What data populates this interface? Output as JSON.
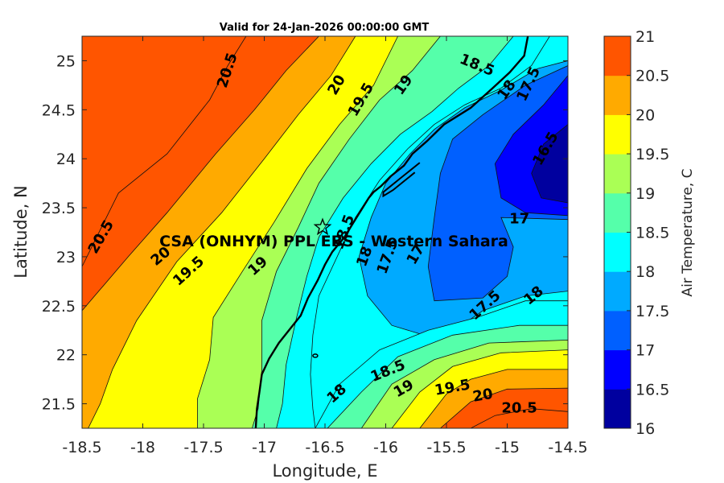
{
  "chart_data": {
    "type": "contour",
    "title": "Valid for 24-Jan-2026 00:00:00 GMT",
    "xlabel": "Longitude, E",
    "ylabel": "Latitude, N",
    "xlim": [
      -18.5,
      -14.5
    ],
    "ylim": [
      21.25,
      25.25
    ],
    "x_ticks": [
      "-18.5",
      "-18",
      "-17.5",
      "-17",
      "-16.5",
      "-16",
      "-15.5",
      "-15",
      "-14.5"
    ],
    "y_ticks": [
      "21.5",
      "22",
      "22.5",
      "23",
      "23.5",
      "24",
      "24.5",
      "25"
    ],
    "colorbar": {
      "label": "Air Temperature, C",
      "ticks": [
        "16",
        "16.5",
        "17",
        "17.5",
        "18",
        "18.5",
        "19",
        "19.5",
        "20",
        "20.5",
        "21"
      ],
      "levels": [
        16,
        16.5,
        17,
        17.5,
        18,
        18.5,
        19,
        19.5,
        20,
        20.5,
        21
      ],
      "colors": [
        "#00009f",
        "#0000ff",
        "#0060ff",
        "#00aaff",
        "#00ffff",
        "#55ffaa",
        "#aaff55",
        "#ffff00",
        "#ffaa00",
        "#ff5500",
        "#ff0000"
      ]
    },
    "contour_labels": [
      {
        "text": "20.5",
        "lon": -17.3,
        "lat": 24.9,
        "rot": -72
      },
      {
        "text": "20",
        "lon": -16.4,
        "lat": 24.75,
        "rot": -60
      },
      {
        "text": "19.5",
        "lon": -16.2,
        "lat": 24.6,
        "rot": -60
      },
      {
        "text": "19",
        "lon": -15.85,
        "lat": 24.75,
        "rot": -55
      },
      {
        "text": "18.5",
        "lon": -15.25,
        "lat": 24.95,
        "rot": 22
      },
      {
        "text": "18",
        "lon": -15.0,
        "lat": 24.7,
        "rot": -55
      },
      {
        "text": "17.5",
        "lon": -14.82,
        "lat": 24.76,
        "rot": -65
      },
      {
        "text": "16.5",
        "lon": -14.68,
        "lat": 24.1,
        "rot": -60
      },
      {
        "text": "17",
        "lon": -14.9,
        "lat": 23.38,
        "rot": 0
      },
      {
        "text": "20.5",
        "lon": -18.34,
        "lat": 23.2,
        "rot": -60
      },
      {
        "text": "20",
        "lon": -17.85,
        "lat": 23.0,
        "rot": -40
      },
      {
        "text": "19.5",
        "lon": -17.62,
        "lat": 22.85,
        "rot": -42
      },
      {
        "text": "19",
        "lon": -17.05,
        "lat": 22.9,
        "rot": -42
      },
      {
        "text": "18.5",
        "lon": -16.34,
        "lat": 23.25,
        "rot": -70
      },
      {
        "text": "18",
        "lon": -16.17,
        "lat": 23.0,
        "rot": -70
      },
      {
        "text": "17.5",
        "lon": -15.98,
        "lat": 23.0,
        "rot": -70
      },
      {
        "text": "17",
        "lon": -15.75,
        "lat": 23.02,
        "rot": -60
      },
      {
        "text": "17.5",
        "lon": -15.18,
        "lat": 22.5,
        "rot": -42
      },
      {
        "text": "18",
        "lon": -14.78,
        "lat": 22.6,
        "rot": -40
      },
      {
        "text": "18",
        "lon": -16.4,
        "lat": 21.6,
        "rot": -42
      },
      {
        "text": "18.5",
        "lon": -15.98,
        "lat": 21.83,
        "rot": -22
      },
      {
        "text": "19",
        "lon": -15.85,
        "lat": 21.65,
        "rot": -30
      },
      {
        "text": "19.5",
        "lon": -15.45,
        "lat": 21.66,
        "rot": -10
      },
      {
        "text": "20",
        "lon": -15.2,
        "lat": 21.58,
        "rot": -10
      },
      {
        "text": "20.5",
        "lon": -14.9,
        "lat": 21.45,
        "rot": 0
      }
    ],
    "site": {
      "name": "CSA (ONHYM) PPL EBS - Western Sahara",
      "lon": -16.52,
      "lat": 23.3
    },
    "coastline": [
      [
        -14.83,
        25.25
      ],
      [
        -14.86,
        25.05
      ],
      [
        -14.98,
        24.88
      ],
      [
        -15.12,
        24.72
      ],
      [
        -15.3,
        24.52
      ],
      [
        -15.52,
        24.35
      ],
      [
        -15.66,
        24.18
      ],
      [
        -15.78,
        24.05
      ],
      [
        -15.85,
        23.93
      ],
      [
        -15.96,
        23.82
      ],
      [
        -16.04,
        23.72
      ],
      [
        -16.1,
        23.66
      ],
      [
        -16.14,
        23.6
      ],
      [
        -16.2,
        23.48
      ],
      [
        -16.27,
        23.34
      ],
      [
        -16.34,
        23.2
      ],
      [
        -16.44,
        23.05
      ],
      [
        -16.5,
        22.92
      ],
      [
        -16.56,
        22.76
      ],
      [
        -16.64,
        22.58
      ],
      [
        -16.7,
        22.4
      ],
      [
        -16.79,
        22.26
      ],
      [
        -16.88,
        22.12
      ],
      [
        -16.96,
        21.96
      ],
      [
        -17.02,
        21.8
      ],
      [
        -17.04,
        21.62
      ],
      [
        -17.06,
        21.45
      ],
      [
        -17.07,
        21.25
      ]
    ],
    "peninsula": [
      [
        -15.72,
        23.96
      ],
      [
        -15.8,
        23.88
      ],
      [
        -15.88,
        23.8
      ],
      [
        -15.96,
        23.72
      ],
      [
        -16.02,
        23.66
      ],
      [
        -16.02,
        23.62
      ],
      [
        -15.94,
        23.68
      ],
      [
        -15.86,
        23.76
      ],
      [
        -15.76,
        23.86
      ]
    ],
    "bands": [
      {
        "level": 20.5,
        "poly": [
          [
            -18.5,
            25.25
          ],
          [
            -17.15,
            25.25
          ],
          [
            -17.3,
            24.95
          ],
          [
            -17.45,
            24.6
          ],
          [
            -17.8,
            24.05
          ],
          [
            -18.2,
            23.65
          ],
          [
            -18.38,
            23.2
          ],
          [
            -18.5,
            22.9
          ]
        ]
      },
      {
        "level": 20.5,
        "poly": [
          [
            -15.3,
            21.25
          ],
          [
            -15.1,
            21.38
          ],
          [
            -14.8,
            21.45
          ],
          [
            -14.5,
            21.42
          ],
          [
            -14.5,
            21.25
          ]
        ]
      },
      {
        "level": 20,
        "poly": [
          [
            -16.55,
            25.25
          ],
          [
            -16.82,
            24.9
          ],
          [
            -17.08,
            24.5
          ],
          [
            -17.4,
            24.05
          ],
          [
            -17.8,
            23.45
          ],
          [
            -18.12,
            23.0
          ],
          [
            -18.5,
            22.45
          ],
          [
            -18.5,
            25.25
          ]
        ]
      },
      {
        "level": 20,
        "poly": [
          [
            -15.55,
            21.25
          ],
          [
            -15.3,
            21.52
          ],
          [
            -15.0,
            21.65
          ],
          [
            -14.5,
            21.66
          ],
          [
            -14.5,
            21.25
          ]
        ]
      },
      {
        "level": 19.5,
        "poly": [
          [
            -16.25,
            25.25
          ],
          [
            -16.45,
            24.85
          ],
          [
            -16.72,
            24.45
          ],
          [
            -17.0,
            24.0
          ],
          [
            -17.35,
            23.45
          ],
          [
            -17.72,
            22.95
          ],
          [
            -18.05,
            22.35
          ],
          [
            -18.25,
            21.85
          ],
          [
            -18.35,
            21.5
          ],
          [
            -18.45,
            21.25
          ],
          [
            -18.5,
            21.25
          ],
          [
            -18.5,
            25.25
          ]
        ]
      },
      {
        "level": 19.5,
        "poly": [
          [
            -15.72,
            21.25
          ],
          [
            -15.5,
            21.6
          ],
          [
            -15.3,
            21.75
          ],
          [
            -15.0,
            21.85
          ],
          [
            -14.5,
            21.85
          ],
          [
            -14.5,
            21.25
          ]
        ]
      },
      {
        "level": 19,
        "poly": [
          [
            -15.9,
            25.25
          ],
          [
            -16.1,
            24.75
          ],
          [
            -16.38,
            24.35
          ],
          [
            -16.65,
            23.9
          ],
          [
            -16.92,
            23.35
          ],
          [
            -17.18,
            22.85
          ],
          [
            -17.42,
            22.38
          ],
          [
            -17.45,
            21.95
          ],
          [
            -17.55,
            21.55
          ],
          [
            -17.55,
            21.25
          ],
          [
            -18.5,
            21.25
          ],
          [
            -18.5,
            25.25
          ]
        ]
      },
      {
        "level": 19,
        "poly": [
          [
            -15.95,
            21.25
          ],
          [
            -15.72,
            21.62
          ],
          [
            -15.45,
            21.88
          ],
          [
            -15.05,
            22.02
          ],
          [
            -14.5,
            22.05
          ],
          [
            -14.5,
            21.25
          ]
        ]
      },
      {
        "level": 18.5,
        "poly": [
          [
            -15.55,
            25.25
          ],
          [
            -15.78,
            24.9
          ],
          [
            -16.05,
            24.6
          ],
          [
            -16.3,
            24.2
          ],
          [
            -16.55,
            23.75
          ],
          [
            -16.72,
            23.3
          ],
          [
            -16.9,
            22.85
          ],
          [
            -17.02,
            22.35
          ],
          [
            -17.02,
            21.85
          ],
          [
            -17.05,
            21.45
          ],
          [
            -17.1,
            21.25
          ],
          [
            -18.5,
            21.25
          ],
          [
            -18.5,
            25.25
          ]
        ]
      },
      {
        "level": 18.5,
        "poly": [
          [
            -16.2,
            21.25
          ],
          [
            -15.95,
            21.7
          ],
          [
            -15.6,
            21.95
          ],
          [
            -15.15,
            22.12
          ],
          [
            -14.5,
            22.15
          ],
          [
            -14.5,
            21.25
          ]
        ]
      },
      {
        "level": 18,
        "poly": [
          [
            -14.95,
            25.25
          ],
          [
            -15.15,
            24.95
          ],
          [
            -15.4,
            24.72
          ],
          [
            -15.62,
            24.48
          ],
          [
            -15.88,
            24.25
          ],
          [
            -16.12,
            23.95
          ],
          [
            -16.35,
            23.6
          ],
          [
            -16.55,
            23.2
          ],
          [
            -16.65,
            22.8
          ],
          [
            -16.74,
            22.35
          ],
          [
            -16.82,
            21.9
          ],
          [
            -16.85,
            21.5
          ],
          [
            -16.9,
            21.25
          ],
          [
            -18.5,
            21.25
          ],
          [
            -18.5,
            25.25
          ]
        ]
      },
      {
        "level": 18,
        "poly": [
          [
            -16.48,
            21.25
          ],
          [
            -16.2,
            21.62
          ],
          [
            -15.9,
            21.98
          ],
          [
            -15.45,
            22.2
          ],
          [
            -14.9,
            22.3
          ],
          [
            -14.5,
            22.3
          ],
          [
            -14.5,
            21.25
          ]
        ]
      },
      {
        "level": 17.5,
        "poly": [
          [
            -14.65,
            25.25
          ],
          [
            -14.8,
            24.95
          ],
          [
            -15.05,
            24.72
          ],
          [
            -15.35,
            24.55
          ],
          [
            -15.6,
            24.35
          ],
          [
            -15.82,
            24.1
          ],
          [
            -16.05,
            23.78
          ],
          [
            -16.25,
            23.4
          ],
          [
            -16.4,
            23.0
          ],
          [
            -16.55,
            22.6
          ],
          [
            -16.6,
            22.2
          ],
          [
            -16.62,
            21.8
          ],
          [
            -16.6,
            21.45
          ],
          [
            -16.58,
            21.25
          ],
          [
            -18.5,
            21.25
          ],
          [
            -18.5,
            25.25
          ]
        ]
      },
      {
        "level": 17.5,
        "poly": [
          [
            -14.5,
            22.55
          ],
          [
            -14.85,
            22.55
          ],
          [
            -15.25,
            22.38
          ],
          [
            -15.65,
            22.25
          ],
          [
            -16.05,
            22.05
          ],
          [
            -16.38,
            21.7
          ],
          [
            -16.58,
            21.25
          ],
          [
            -14.5,
            21.25
          ]
        ]
      }
    ],
    "blue_region": [
      [
        -14.5,
        25.0
      ],
      [
        -14.75,
        24.92
      ],
      [
        -15.05,
        24.7
      ],
      [
        -15.35,
        24.52
      ],
      [
        -15.6,
        24.3
      ],
      [
        -15.8,
        24.05
      ],
      [
        -16.0,
        23.75
      ],
      [
        -16.12,
        23.4
      ],
      [
        -16.22,
        23.0
      ],
      [
        -16.15,
        22.6
      ],
      [
        -15.95,
        22.3
      ],
      [
        -15.55,
        22.15
      ],
      [
        -15.2,
        22.45
      ],
      [
        -14.85,
        22.6
      ],
      [
        -14.5,
        22.65
      ]
    ],
    "blue_17": [
      [
        -14.5,
        24.95
      ],
      [
        -14.85,
        24.75
      ],
      [
        -15.2,
        24.45
      ],
      [
        -15.45,
        24.2
      ],
      [
        -15.55,
        23.85
      ],
      [
        -15.6,
        23.4
      ],
      [
        -15.65,
        22.9
      ],
      [
        -15.6,
        22.55
      ],
      [
        -15.2,
        22.58
      ],
      [
        -15.0,
        22.8
      ],
      [
        -14.95,
        23.1
      ],
      [
        -15.05,
        23.4
      ],
      [
        -14.5,
        23.38
      ]
    ],
    "blue_165": [
      [
        -14.5,
        24.85
      ],
      [
        -14.7,
        24.55
      ],
      [
        -14.95,
        24.25
      ],
      [
        -15.1,
        23.95
      ],
      [
        -15.05,
        23.6
      ],
      [
        -14.85,
        23.45
      ],
      [
        -14.5,
        23.42
      ]
    ],
    "blue_16": [
      [
        -14.5,
        24.35
      ],
      [
        -14.7,
        24.15
      ],
      [
        -14.8,
        23.85
      ],
      [
        -14.72,
        23.6
      ],
      [
        -14.5,
        23.55
      ]
    ]
  }
}
